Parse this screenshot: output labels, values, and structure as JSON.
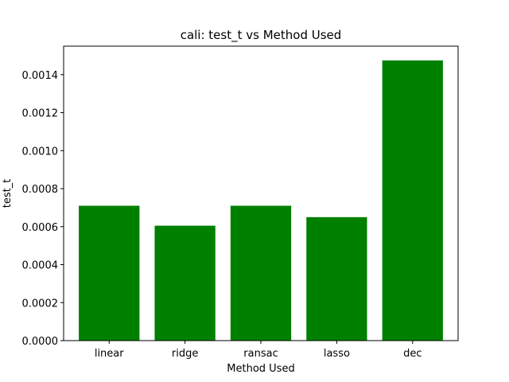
{
  "chart_data": {
    "type": "bar",
    "title": "cali: test_t vs Method Used",
    "xlabel": "Method Used",
    "ylabel": "test_t",
    "categories": [
      "linear",
      "ridge",
      "ransac",
      "lasso",
      "dec"
    ],
    "values": [
      0.00071,
      0.000605,
      0.00071,
      0.00065,
      0.001475
    ],
    "ylim": [
      0,
      0.00155
    ],
    "yticks": [
      0.0,
      0.0002,
      0.0004,
      0.0006,
      0.0008,
      0.001,
      0.0012,
      0.0014
    ],
    "ytick_labels": [
      "0.0000",
      "0.0002",
      "0.0004",
      "0.0006",
      "0.0008",
      "0.0010",
      "0.0012",
      "0.0014"
    ],
    "bar_color": "#008000",
    "grid": false,
    "legend": "none"
  }
}
